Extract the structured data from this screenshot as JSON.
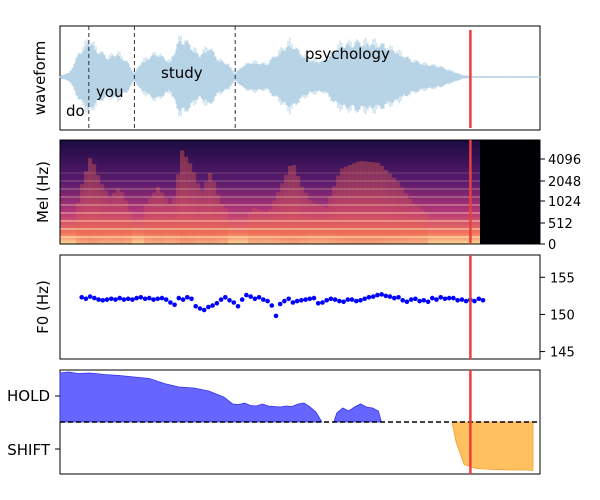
{
  "chart_data": [
    {
      "type": "line",
      "panel": "waveform",
      "ylabel": "waveform",
      "colors": {
        "wave": "#a6c8e0",
        "cursor": "#e8403a",
        "divider": "#333333"
      },
      "words": [
        {
          "label": "do",
          "start": 0.0,
          "end": 0.06
        },
        {
          "label": "you",
          "start": 0.06,
          "end": 0.155
        },
        {
          "label": "study",
          "start": 0.155,
          "end": 0.365
        },
        {
          "label": "psychology",
          "start": 0.365,
          "end": 0.845
        }
      ],
      "dividers": [
        0.06,
        0.155,
        0.365
      ],
      "cursor": 0.855,
      "envelope": [
        [
          0.0,
          0.03
        ],
        [
          0.02,
          0.1
        ],
        [
          0.04,
          0.55
        ],
        [
          0.06,
          0.85
        ],
        [
          0.08,
          0.6
        ],
        [
          0.1,
          0.45
        ],
        [
          0.12,
          0.55
        ],
        [
          0.14,
          0.35
        ],
        [
          0.155,
          0.08
        ],
        [
          0.17,
          0.35
        ],
        [
          0.2,
          0.55
        ],
        [
          0.23,
          0.35
        ],
        [
          0.25,
          0.9
        ],
        [
          0.27,
          0.75
        ],
        [
          0.29,
          0.5
        ],
        [
          0.31,
          0.7
        ],
        [
          0.33,
          0.4
        ],
        [
          0.35,
          0.3
        ],
        [
          0.365,
          0.08
        ],
        [
          0.38,
          0.25
        ],
        [
          0.4,
          0.35
        ],
        [
          0.43,
          0.3
        ],
        [
          0.45,
          0.5
        ],
        [
          0.48,
          0.8
        ],
        [
          0.5,
          0.55
        ],
        [
          0.52,
          0.4
        ],
        [
          0.55,
          0.35
        ],
        [
          0.58,
          0.72
        ],
        [
          0.62,
          0.8
        ],
        [
          0.66,
          0.78
        ],
        [
          0.7,
          0.6
        ],
        [
          0.73,
          0.4
        ],
        [
          0.76,
          0.3
        ],
        [
          0.79,
          0.25
        ],
        [
          0.82,
          0.12
        ],
        [
          0.84,
          0.04
        ],
        [
          0.86,
          0.02
        ],
        [
          1.0,
          0.02
        ]
      ]
    },
    {
      "type": "heatmap",
      "panel": "mel-spectrogram",
      "ylabel": "Mel (Hz)",
      "yticks": [
        "0",
        "512",
        "1024",
        "2048",
        "4096"
      ],
      "cursor": 0.855,
      "silence_start": 0.875,
      "colormap": "magma"
    },
    {
      "type": "scatter",
      "panel": "f0",
      "ylabel": "F0 (Hz)",
      "ylim": [
        144,
        158
      ],
      "yticks": [
        "145",
        "150",
        "155"
      ],
      "color": "#0000ff",
      "cursor": 0.855,
      "points": [
        [
          0.04,
          152.3
        ],
        [
          0.05,
          152.1
        ],
        [
          0.06,
          152.4
        ],
        [
          0.07,
          152.2
        ],
        [
          0.08,
          152.0
        ],
        [
          0.09,
          151.9
        ],
        [
          0.1,
          152.0
        ],
        [
          0.11,
          152.1
        ],
        [
          0.12,
          152.0
        ],
        [
          0.13,
          152.2
        ],
        [
          0.14,
          152.0
        ],
        [
          0.15,
          152.1
        ],
        [
          0.16,
          152.0
        ],
        [
          0.17,
          152.2
        ],
        [
          0.18,
          152.3
        ],
        [
          0.19,
          152.1
        ],
        [
          0.2,
          152.2
        ],
        [
          0.21,
          152.0
        ],
        [
          0.22,
          152.1
        ],
        [
          0.23,
          152.2
        ],
        [
          0.24,
          152.0
        ],
        [
          0.25,
          151.6
        ],
        [
          0.26,
          151.3
        ],
        [
          0.27,
          152.2
        ],
        [
          0.28,
          152.0
        ],
        [
          0.29,
          152.3
        ],
        [
          0.3,
          152.1
        ],
        [
          0.31,
          151.1
        ],
        [
          0.32,
          150.8
        ],
        [
          0.33,
          150.6
        ],
        [
          0.34,
          151.0
        ],
        [
          0.35,
          151.2
        ],
        [
          0.36,
          151.5
        ],
        [
          0.37,
          152.0
        ],
        [
          0.38,
          152.3
        ],
        [
          0.39,
          151.9
        ],
        [
          0.4,
          151.6
        ],
        [
          0.41,
          151.1
        ],
        [
          0.42,
          152.0
        ],
        [
          0.43,
          152.6
        ],
        [
          0.44,
          152.4
        ],
        [
          0.45,
          152.1
        ],
        [
          0.46,
          152.3
        ],
        [
          0.47,
          152.0
        ],
        [
          0.48,
          151.8
        ],
        [
          0.49,
          151.2
        ],
        [
          0.5,
          149.8
        ],
        [
          0.51,
          151.4
        ],
        [
          0.52,
          151.8
        ],
        [
          0.53,
          152.1
        ],
        [
          0.54,
          151.6
        ],
        [
          0.55,
          151.8
        ],
        [
          0.56,
          151.9
        ],
        [
          0.57,
          152.0
        ],
        [
          0.58,
          152.1
        ],
        [
          0.59,
          152.2
        ],
        [
          0.6,
          151.5
        ],
        [
          0.61,
          151.6
        ],
        [
          0.62,
          151.9
        ],
        [
          0.63,
          152.1
        ],
        [
          0.64,
          152.0
        ],
        [
          0.65,
          151.8
        ],
        [
          0.66,
          151.7
        ],
        [
          0.67,
          152.0
        ],
        [
          0.68,
          152.0
        ],
        [
          0.69,
          151.8
        ],
        [
          0.7,
          151.9
        ],
        [
          0.71,
          152.1
        ],
        [
          0.72,
          152.3
        ],
        [
          0.73,
          152.4
        ],
        [
          0.74,
          152.6
        ],
        [
          0.75,
          152.7
        ],
        [
          0.76,
          152.5
        ],
        [
          0.77,
          152.4
        ],
        [
          0.78,
          152.2
        ],
        [
          0.79,
          152.3
        ],
        [
          0.8,
          151.9
        ],
        [
          0.81,
          151.7
        ],
        [
          0.82,
          152.0
        ],
        [
          0.83,
          152.1
        ],
        [
          0.84,
          151.8
        ],
        [
          0.85,
          151.9
        ],
        [
          0.86,
          151.7
        ],
        [
          0.87,
          152.2
        ],
        [
          0.88,
          152.0
        ],
        [
          0.89,
          152.3
        ],
        [
          0.9,
          152.1
        ],
        [
          0.91,
          152.2
        ],
        [
          0.92,
          152.2
        ],
        [
          0.93,
          151.9
        ],
        [
          0.94,
          152.0
        ],
        [
          0.95,
          151.8
        ],
        [
          0.96,
          152.0
        ],
        [
          0.97,
          151.8
        ],
        [
          0.98,
          152.1
        ],
        [
          0.99,
          151.9
        ]
      ]
    },
    {
      "type": "area",
      "panel": "turn-taking",
      "yticks": [
        "HOLD",
        "SHIFT"
      ],
      "colors": {
        "hold": "#6666ff",
        "shift": "#ffc060",
        "baseline": "#000000"
      },
      "cursor": 0.855,
      "hold": [
        [
          0.0,
          0.98
        ],
        [
          0.03,
          1.0
        ],
        [
          0.06,
          0.97
        ],
        [
          0.1,
          0.98
        ],
        [
          0.15,
          0.95
        ],
        [
          0.2,
          0.93
        ],
        [
          0.25,
          0.9
        ],
        [
          0.3,
          0.87
        ],
        [
          0.35,
          0.77
        ],
        [
          0.4,
          0.7
        ],
        [
          0.45,
          0.68
        ],
        [
          0.5,
          0.62
        ],
        [
          0.55,
          0.5
        ],
        [
          0.58,
          0.36
        ],
        [
          0.6,
          0.35
        ],
        [
          0.62,
          0.38
        ],
        [
          0.64,
          0.33
        ],
        [
          0.66,
          0.32
        ],
        [
          0.68,
          0.36
        ],
        [
          0.7,
          0.32
        ],
        [
          0.72,
          0.31
        ],
        [
          0.74,
          0.3
        ],
        [
          0.76,
          0.32
        ],
        [
          0.78,
          0.31
        ],
        [
          0.8,
          0.36
        ],
        [
          0.82,
          0.38
        ],
        [
          0.84,
          0.3
        ],
        [
          0.86,
          0.2
        ],
        [
          0.88,
          0.0
        ]
      ],
      "hold_second": [
        [
          0.92,
          0.0
        ],
        [
          0.93,
          0.18
        ],
        [
          0.95,
          0.28
        ],
        [
          0.97,
          0.22
        ],
        [
          0.99,
          0.3
        ],
        [
          1.01,
          0.36
        ],
        [
          1.03,
          0.3
        ],
        [
          1.05,
          0.28
        ],
        [
          1.07,
          0.22
        ],
        [
          1.08,
          0.0
        ]
      ],
      "shift": [
        [
          0.8,
          0.0
        ],
        [
          0.81,
          0.4
        ],
        [
          0.83,
          0.85
        ],
        [
          0.86,
          0.93
        ],
        [
          0.9,
          0.95
        ],
        [
          0.94,
          0.96
        ],
        [
          0.98,
          0.96
        ],
        [
          1.0,
          0.97
        ]
      ]
    }
  ]
}
